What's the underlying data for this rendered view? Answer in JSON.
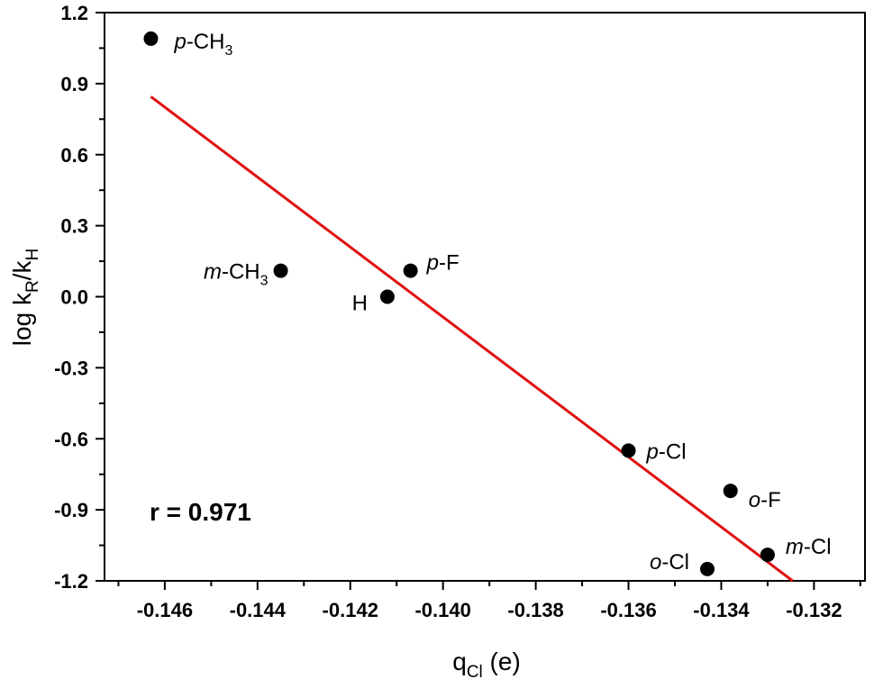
{
  "chart_data": {
    "type": "scatter",
    "title": "",
    "xlabel": {
      "main": "q",
      "sub": "Cl",
      "suffix": " (e)"
    },
    "ylabel": {
      "prefix": "log k",
      "sub1": "R",
      "mid": "/k",
      "sub2": "H"
    },
    "xlim": [
      -0.1473,
      -0.1309
    ],
    "ylim": [
      -1.2,
      1.2
    ],
    "x_ticks": [
      -0.146,
      -0.144,
      -0.142,
      -0.14,
      -0.138,
      -0.136,
      -0.134,
      -0.132
    ],
    "x_tick_labels": [
      "-0.146",
      "-0.144",
      "-0.142",
      "-0.140",
      "-0.138",
      "-0.136",
      "-0.134",
      "-0.132"
    ],
    "y_ticks": [
      -1.2,
      -0.9,
      -0.6,
      -0.3,
      0.0,
      0.3,
      0.6,
      0.9,
      1.2
    ],
    "y_tick_labels": [
      "-1.2",
      "-0.9",
      "-0.6",
      "-0.3",
      "0.0",
      "0.3",
      "0.6",
      "0.9",
      "1.2"
    ],
    "grid": false,
    "points": [
      {
        "x": -0.1463,
        "y": 1.09,
        "label_pre": "p",
        "label_main": "-CH",
        "label_sub": "3"
      },
      {
        "x": -0.1435,
        "y": 0.11,
        "label_pre": "m",
        "label_main": "-CH",
        "label_sub": "3"
      },
      {
        "x": -0.1412,
        "y": 0.0,
        "label_pre": "",
        "label_main": "H",
        "label_sub": ""
      },
      {
        "x": -0.1407,
        "y": 0.11,
        "label_pre": "p",
        "label_main": "-F",
        "label_sub": ""
      },
      {
        "x": -0.136,
        "y": -0.65,
        "label_pre": "p",
        "label_main": "-Cl",
        "label_sub": ""
      },
      {
        "x": -0.1338,
        "y": -0.82,
        "label_pre": "o",
        "label_main": "-F",
        "label_sub": ""
      },
      {
        "x": -0.133,
        "y": -1.09,
        "label_pre": "m",
        "label_main": "-Cl",
        "label_sub": ""
      },
      {
        "x": -0.1343,
        "y": -1.15,
        "label_pre": "o",
        "label_main": "-Cl",
        "label_sub": ""
      }
    ],
    "fit_line": {
      "x": [
        -0.1463,
        -0.13246
      ],
      "y": [
        0.845,
        -1.2
      ],
      "color": "#e01010"
    },
    "annotation": "r = 0.971",
    "marker_color": "#000000"
  }
}
